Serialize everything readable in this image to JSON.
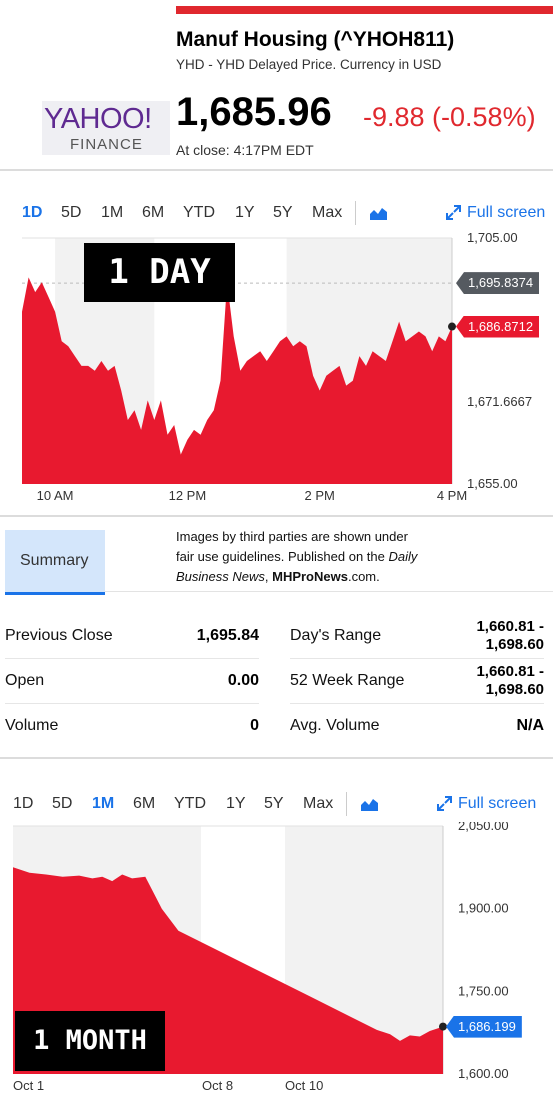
{
  "quote": {
    "title": "Manuf Housing (^YHOH811)",
    "subtitle": "YHD - YHD Delayed Price. Currency in USD",
    "price": "1,685.96",
    "change": "-9.88 (-0.58%)",
    "close_time": "At close: 4:17PM EDT"
  },
  "logo": {
    "line1": "YAHOO!",
    "line2": "FINANCE"
  },
  "chart1": {
    "tabs": [
      {
        "label": "1D",
        "active": true
      },
      {
        "label": "5D"
      },
      {
        "label": "1M"
      },
      {
        "label": "6M"
      },
      {
        "label": "YTD"
      },
      {
        "label": "1Y"
      },
      {
        "label": "5Y"
      },
      {
        "label": "Max"
      }
    ],
    "chart_icon": "area-chart-icon",
    "fullscreen_icon": "expand-icon",
    "fullscreen_label": "Full screen",
    "stamp": "1 DAY",
    "prev_close_tag": "1,695.8374",
    "last_tag": "1,686.8712",
    "colors": {
      "fill": "#e8192f",
      "prev_tag": "#555a60",
      "last_tag": "#e8192f",
      "active": "#1a73e8"
    }
  },
  "chart_data": [
    {
      "type": "area",
      "y_ticks": [
        "1,705.00",
        "1,671.6667",
        "1,655.00"
      ],
      "x_ticks": [
        "10 AM",
        "12 PM",
        "2 PM",
        "4 PM"
      ],
      "ylim": [
        1655,
        1705
      ],
      "x_hours": [
        9.5,
        9.6,
        9.7,
        9.8,
        9.9,
        10.0,
        10.1,
        10.2,
        10.3,
        10.4,
        10.5,
        10.6,
        10.7,
        10.8,
        10.9,
        11.0,
        11.1,
        11.2,
        11.3,
        11.4,
        11.5,
        11.6,
        11.7,
        11.8,
        11.9,
        12.0,
        12.1,
        12.2,
        12.3,
        12.4,
        12.5,
        12.6,
        12.7,
        12.8,
        12.9,
        13.0,
        13.1,
        13.2,
        13.3,
        13.4,
        13.5,
        13.6,
        13.7,
        13.8,
        13.9,
        14.0,
        14.1,
        14.2,
        14.3,
        14.4,
        14.5,
        14.6,
        14.7,
        14.8,
        14.9,
        15.0,
        15.1,
        15.2,
        15.3,
        15.4,
        15.5,
        15.6,
        15.7,
        15.8,
        15.9,
        16.0
      ],
      "values": [
        1690,
        1697,
        1694,
        1696,
        1693,
        1690,
        1684,
        1683,
        1681,
        1679,
        1679,
        1678,
        1680,
        1678,
        1679,
        1674,
        1668,
        1670,
        1666,
        1672,
        1668,
        1672,
        1665,
        1667,
        1661,
        1664,
        1666,
        1665,
        1668,
        1670,
        1676,
        1696,
        1685,
        1678,
        1680,
        1681,
        1682,
        1680,
        1682,
        1684,
        1685,
        1683,
        1684,
        1683,
        1677,
        1674,
        1677,
        1678,
        1679,
        1675,
        1676,
        1681,
        1679,
        1682,
        1681,
        1680,
        1684,
        1688,
        1684,
        1685,
        1686,
        1685,
        1682,
        1685,
        1684,
        1687
      ]
    },
    {
      "type": "area",
      "y_ticks": [
        "2,050.00",
        "1,900.00",
        "1,750.00",
        "1,600.00"
      ],
      "x_ticks": [
        "Oct 1",
        "Oct 8",
        "Oct 10"
      ],
      "ylim": [
        1600,
        2050
      ],
      "x_days": [
        1.0,
        1.5,
        2.0,
        2.5,
        3.0,
        3.4,
        3.7,
        4.0,
        4.3,
        4.6,
        5.0,
        5.5,
        6.0,
        7.0,
        8.0,
        9.0,
        10.0,
        11.0,
        12.0,
        12.4,
        12.7,
        13.0,
        13.3,
        13.6,
        14.0
      ],
      "values": [
        1975,
        1965,
        1962,
        1958,
        1960,
        1955,
        1958,
        1950,
        1962,
        1955,
        1958,
        1900,
        1860,
        1830,
        1800,
        1770,
        1740,
        1710,
        1680,
        1672,
        1660,
        1670,
        1668,
        1678,
        1686
      ]
    }
  ],
  "notice": {
    "line1": "Images by third parties are shown under",
    "line2": "fair use guidelines.  Published on the ",
    "italic": "Daily Business News",
    "comma": ", ",
    "site": "MHProNews",
    "tail": ".com."
  },
  "summary": {
    "tab_label": "Summary",
    "rows": [
      {
        "l_label": "Previous Close",
        "l_value": "1,695.84",
        "r_label": "Day's Range",
        "r_value_a": "1,660.81 -",
        "r_value_b": "1,698.60"
      },
      {
        "l_label": "Open",
        "l_value": "0.00",
        "r_label": "52 Week Range",
        "r_value_a": "1,660.81 -",
        "r_value_b": "1,698.60"
      },
      {
        "l_label": "Volume",
        "l_value": "0",
        "r_label": "Avg. Volume",
        "r_value_a": "N/A"
      }
    ]
  },
  "chart2": {
    "tabs": [
      {
        "label": "1D"
      },
      {
        "label": "5D"
      },
      {
        "label": "1M",
        "active": true
      },
      {
        "label": "6M"
      },
      {
        "label": "YTD"
      },
      {
        "label": "1Y"
      },
      {
        "label": "5Y"
      },
      {
        "label": "Max"
      }
    ],
    "chart_icon": "area-chart-icon",
    "fullscreen_icon": "expand-icon",
    "fullscreen_label": "Full screen",
    "stamp": "1 MONTH",
    "last_tag": "1,686.199",
    "colors": {
      "fill": "#e8192f",
      "last_tag": "#1a73e8",
      "active": "#1a73e8"
    }
  }
}
